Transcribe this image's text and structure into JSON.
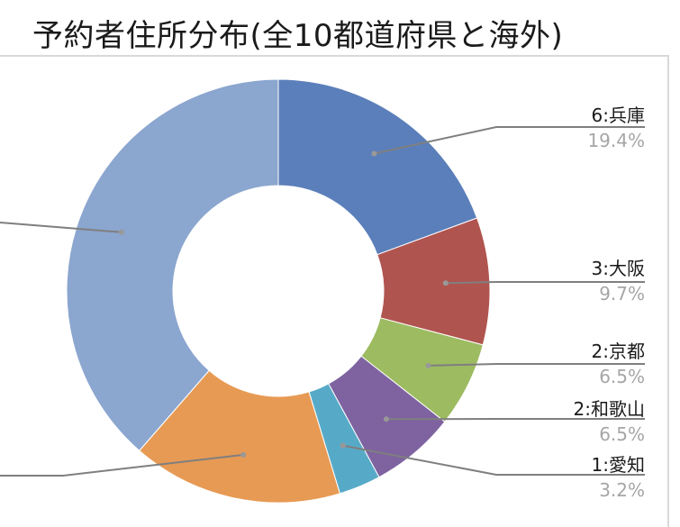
{
  "chart_data": {
    "type": "pie",
    "variant": "donut",
    "title": "予約者住所分布(全10都道府県と海外)",
    "slices": [
      {
        "label": "6:兵庫",
        "percent": "19.4%",
        "value": 19.4,
        "color": "#5b7fba"
      },
      {
        "label": "3:大阪",
        "percent": "9.7%",
        "value": 9.7,
        "color": "#b0544f"
      },
      {
        "label": "2:京都",
        "percent": "6.5%",
        "value": 6.5,
        "color": "#9dbb61"
      },
      {
        "label": "2:和歌山",
        "percent": "6.5%",
        "value": 6.5,
        "color": "#7e63a0"
      },
      {
        "label": "1:愛知",
        "percent": "3.2%",
        "value": 3.2,
        "color": "#57aac7"
      },
      {
        "label": "",
        "percent": "",
        "value": 16.1,
        "color": "#e79a54"
      },
      {
        "label": "",
        "percent": "",
        "value": 38.6,
        "color": "#8ba6cf"
      }
    ],
    "legend": "none"
  }
}
